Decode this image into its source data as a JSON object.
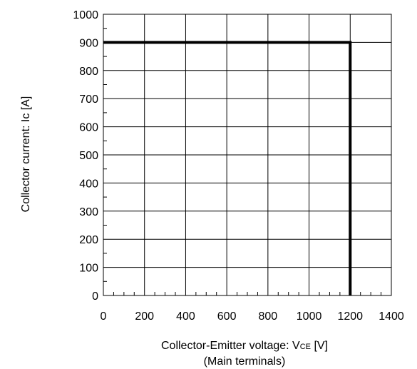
{
  "chart_data": {
    "type": "line",
    "title": "",
    "xlabel": {
      "line1_main": "Collector-Emitter voltage: V",
      "line1_sub": "CE",
      "line1_unit": " [V]",
      "line2": "(Main terminals)"
    },
    "ylabel": "Collector current: Ic [A]",
    "xlim": [
      0,
      1400
    ],
    "ylim": [
      0,
      1000
    ],
    "x_ticks": [
      0,
      200,
      400,
      600,
      800,
      1000,
      1200,
      1400
    ],
    "y_ticks": [
      0,
      100,
      200,
      300,
      400,
      500,
      600,
      700,
      800,
      900,
      1000
    ],
    "x_minor_step": 50,
    "y_minor_step": 50,
    "grid": true,
    "series": [
      {
        "x": [
          0,
          1200,
          1200
        ],
        "y": [
          900,
          900,
          0
        ],
        "color": "#000000"
      }
    ]
  }
}
